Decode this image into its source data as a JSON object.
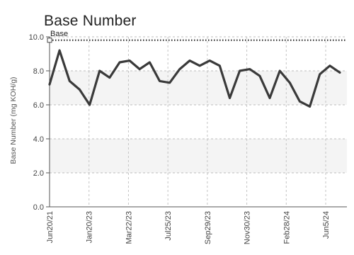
{
  "chart_data": {
    "type": "line",
    "title": "Base Number",
    "ylabel": "Base Number (mg KOH/g)",
    "ylim": [
      0,
      10
    ],
    "yticks": [
      "0.0",
      "2.0",
      "4.0",
      "6.0",
      "8.0",
      "10.0"
    ],
    "xtick_labels": [
      "Jun20/21",
      "Jan20/23",
      "Mar22/23",
      "Jul25/23",
      "Sep29/23",
      "Nov30/23",
      "Feb28/24",
      "Jun5/24"
    ],
    "series": [
      {
        "values": [
          7.2,
          9.2,
          7.4,
          6.9,
          6.0,
          8.0,
          7.6,
          8.5,
          8.6,
          8.1,
          8.5,
          7.4,
          7.3,
          8.1,
          8.6,
          8.3,
          8.6,
          8.3,
          6.4,
          8.0,
          8.1,
          7.7,
          6.4,
          8.0,
          7.3,
          6.2,
          5.9,
          7.8,
          8.3,
          7.9
        ],
        "color": "#3a3a3a"
      }
    ],
    "reference_lines": [
      {
        "name": "Base",
        "value": 9.8,
        "color": "#444444",
        "style": "dotted"
      }
    ],
    "grid": true,
    "band_colors": [
      "#f4f4f4",
      "#ffffff"
    ]
  }
}
